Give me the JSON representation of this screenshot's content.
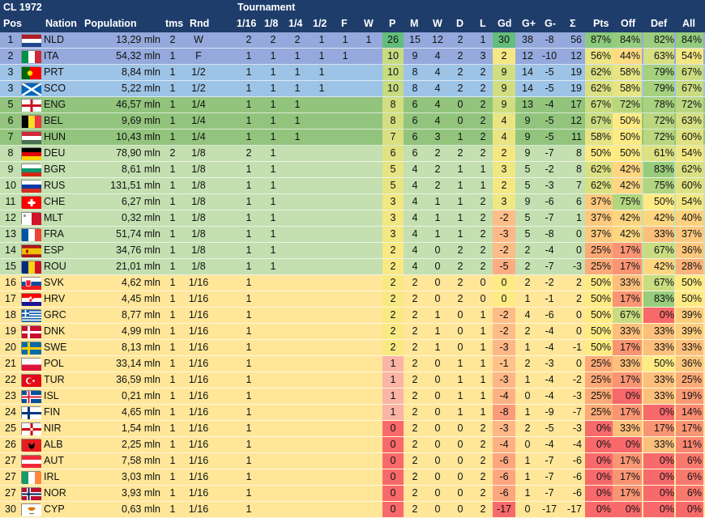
{
  "title": "CL 1972",
  "tournament_label": "Tournament",
  "headers": {
    "pos": "Pos",
    "nation": "Nation",
    "population": "Population",
    "tms": "tms",
    "rnd": "Rnd",
    "r16": "1/16",
    "r8": "1/8",
    "r4": "1/4",
    "r2": "1/2",
    "f": "F",
    "w": "W",
    "p": "P",
    "m": "M",
    "wins": "W",
    "d": "D",
    "l": "L",
    "gd": "Gd",
    "gplus": "G+",
    "gminus": "G-",
    "sigma": "Σ",
    "pts": "Pts",
    "off": "Off",
    "def": "Def",
    "all": "All"
  },
  "colors": {
    "header": "#1f3d6b",
    "band_winner": "#95a9dc",
    "band_semi": "#9dc3e6",
    "band_quarter": "#92c47d",
    "band_eighth": "#c4dfb0",
    "band_sixteenth": "#ffe699"
  },
  "rows": [
    {
      "pos": "1",
      "flag": "NLD",
      "nation": "NLD",
      "population": "13,29 mln",
      "tms": "2",
      "rnd": "W",
      "r16": "2",
      "r8": "2",
      "r4": "2",
      "r2": "1",
      "f": "1",
      "w": "1",
      "p": "26",
      "m": "15",
      "w2": "12",
      "d": "2",
      "l": "1",
      "gd": "30",
      "gp": "38",
      "gm": "-8",
      "sig": "56",
      "pts": "87%",
      "off": "84%",
      "def": "82%",
      "all": "84%",
      "band": "winner"
    },
    {
      "pos": "2",
      "flag": "ITA",
      "nation": "ITA",
      "population": "54,32 mln",
      "tms": "1",
      "rnd": "F",
      "r16": "1",
      "r8": "1",
      "r4": "1",
      "r2": "1",
      "f": "1",
      "w": "",
      "p": "10",
      "m": "9",
      "w2": "4",
      "d": "2",
      "l": "3",
      "gd": "2",
      "gp": "12",
      "gm": "-10",
      "sig": "12",
      "pts": "56%",
      "off": "44%",
      "def": "63%",
      "all": "54%",
      "band": "winner"
    },
    {
      "pos": "3",
      "flag": "PRT",
      "nation": "PRT",
      "population": "8,84 mln",
      "tms": "1",
      "rnd": "1/2",
      "r16": "1",
      "r8": "1",
      "r4": "1",
      "r2": "1",
      "f": "",
      "w": "",
      "p": "10",
      "m": "8",
      "w2": "4",
      "d": "2",
      "l": "2",
      "gd": "9",
      "gp": "14",
      "gm": "-5",
      "sig": "19",
      "pts": "62%",
      "off": "58%",
      "def": "79%",
      "all": "67%",
      "band": "semi"
    },
    {
      "pos": "3",
      "flag": "SCO",
      "nation": "SCO",
      "population": "5,22 mln",
      "tms": "1",
      "rnd": "1/2",
      "r16": "1",
      "r8": "1",
      "r4": "1",
      "r2": "1",
      "f": "",
      "w": "",
      "p": "10",
      "m": "8",
      "w2": "4",
      "d": "2",
      "l": "2",
      "gd": "9",
      "gp": "14",
      "gm": "-5",
      "sig": "19",
      "pts": "62%",
      "off": "58%",
      "def": "79%",
      "all": "67%",
      "band": "semi"
    },
    {
      "pos": "5",
      "flag": "ENG",
      "nation": "ENG",
      "population": "46,57 mln",
      "tms": "1",
      "rnd": "1/4",
      "r16": "1",
      "r8": "1",
      "r4": "1",
      "r2": "",
      "f": "",
      "w": "",
      "p": "8",
      "m": "6",
      "w2": "4",
      "d": "0",
      "l": "2",
      "gd": "9",
      "gp": "13",
      "gm": "-4",
      "sig": "17",
      "pts": "67%",
      "off": "72%",
      "def": "78%",
      "all": "72%",
      "band": "quarter"
    },
    {
      "pos": "6",
      "flag": "BEL",
      "nation": "BEL",
      "population": "9,69 mln",
      "tms": "1",
      "rnd": "1/4",
      "r16": "1",
      "r8": "1",
      "r4": "1",
      "r2": "",
      "f": "",
      "w": "",
      "p": "8",
      "m": "6",
      "w2": "4",
      "d": "0",
      "l": "2",
      "gd": "4",
      "gp": "9",
      "gm": "-5",
      "sig": "12",
      "pts": "67%",
      "off": "50%",
      "def": "72%",
      "all": "63%",
      "band": "quarter"
    },
    {
      "pos": "7",
      "flag": "HUN",
      "nation": "HUN",
      "population": "10,43 mln",
      "tms": "1",
      "rnd": "1/4",
      "r16": "1",
      "r8": "1",
      "r4": "1",
      "r2": "",
      "f": "",
      "w": "",
      "p": "7",
      "m": "6",
      "w2": "3",
      "d": "1",
      "l": "2",
      "gd": "4",
      "gp": "9",
      "gm": "-5",
      "sig": "11",
      "pts": "58%",
      "off": "50%",
      "def": "72%",
      "all": "60%",
      "band": "quarter"
    },
    {
      "pos": "8",
      "flag": "DEU",
      "nation": "DEU",
      "population": "78,90 mln",
      "tms": "2",
      "rnd": "1/8",
      "r16": "2",
      "r8": "1",
      "r4": "",
      "r2": "",
      "f": "",
      "w": "",
      "p": "6",
      "m": "6",
      "w2": "2",
      "d": "2",
      "l": "2",
      "gd": "2",
      "gp": "9",
      "gm": "-7",
      "sig": "8",
      "pts": "50%",
      "off": "50%",
      "def": "61%",
      "all": "54%",
      "band": "eighth"
    },
    {
      "pos": "9",
      "flag": "BGR",
      "nation": "BGR",
      "population": "8,61 mln",
      "tms": "1",
      "rnd": "1/8",
      "r16": "1",
      "r8": "1",
      "r4": "",
      "r2": "",
      "f": "",
      "w": "",
      "p": "5",
      "m": "4",
      "w2": "2",
      "d": "1",
      "l": "1",
      "gd": "3",
      "gp": "5",
      "gm": "-2",
      "sig": "8",
      "pts": "62%",
      "off": "42%",
      "def": "83%",
      "all": "62%",
      "band": "eighth"
    },
    {
      "pos": "10",
      "flag": "RUS",
      "nation": "RUS",
      "population": "131,51 mln",
      "tms": "1",
      "rnd": "1/8",
      "r16": "1",
      "r8": "1",
      "r4": "",
      "r2": "",
      "f": "",
      "w": "",
      "p": "5",
      "m": "4",
      "w2": "2",
      "d": "1",
      "l": "1",
      "gd": "2",
      "gp": "5",
      "gm": "-3",
      "sig": "7",
      "pts": "62%",
      "off": "42%",
      "def": "75%",
      "all": "60%",
      "band": "eighth"
    },
    {
      "pos": "11",
      "flag": "CHE",
      "nation": "CHE",
      "population": "6,27 mln",
      "tms": "1",
      "rnd": "1/8",
      "r16": "1",
      "r8": "1",
      "r4": "",
      "r2": "",
      "f": "",
      "w": "",
      "p": "3",
      "m": "4",
      "w2": "1",
      "d": "1",
      "l": "2",
      "gd": "3",
      "gp": "9",
      "gm": "-6",
      "sig": "6",
      "pts": "37%",
      "off": "75%",
      "def": "50%",
      "all": "54%",
      "band": "eighth"
    },
    {
      "pos": "12",
      "flag": "MLT",
      "nation": "MLT",
      "population": "0,32 mln",
      "tms": "1",
      "rnd": "1/8",
      "r16": "1",
      "r8": "1",
      "r4": "",
      "r2": "",
      "f": "",
      "w": "",
      "p": "3",
      "m": "4",
      "w2": "1",
      "d": "1",
      "l": "2",
      "gd": "-2",
      "gp": "5",
      "gm": "-7",
      "sig": "1",
      "pts": "37%",
      "off": "42%",
      "def": "42%",
      "all": "40%",
      "band": "eighth"
    },
    {
      "pos": "13",
      "flag": "FRA",
      "nation": "FRA",
      "population": "51,74 mln",
      "tms": "1",
      "rnd": "1/8",
      "r16": "1",
      "r8": "1",
      "r4": "",
      "r2": "",
      "f": "",
      "w": "",
      "p": "3",
      "m": "4",
      "w2": "1",
      "d": "1",
      "l": "2",
      "gd": "-3",
      "gp": "5",
      "gm": "-8",
      "sig": "0",
      "pts": "37%",
      "off": "42%",
      "def": "33%",
      "all": "37%",
      "band": "eighth"
    },
    {
      "pos": "14",
      "flag": "ESP",
      "nation": "ESP",
      "population": "34,76 mln",
      "tms": "1",
      "rnd": "1/8",
      "r16": "1",
      "r8": "1",
      "r4": "",
      "r2": "",
      "f": "",
      "w": "",
      "p": "2",
      "m": "4",
      "w2": "0",
      "d": "2",
      "l": "2",
      "gd": "-2",
      "gp": "2",
      "gm": "-4",
      "sig": "0",
      "pts": "25%",
      "off": "17%",
      "def": "67%",
      "all": "36%",
      "band": "eighth"
    },
    {
      "pos": "15",
      "flag": "ROU",
      "nation": "ROU",
      "population": "21,01 mln",
      "tms": "1",
      "rnd": "1/8",
      "r16": "1",
      "r8": "1",
      "r4": "",
      "r2": "",
      "f": "",
      "w": "",
      "p": "2",
      "m": "4",
      "w2": "0",
      "d": "2",
      "l": "2",
      "gd": "-5",
      "gp": "2",
      "gm": "-7",
      "sig": "-3",
      "pts": "25%",
      "off": "17%",
      "def": "42%",
      "all": "28%",
      "band": "eighth"
    },
    {
      "pos": "16",
      "flag": "SVK",
      "nation": "SVK",
      "population": "4,62 mln",
      "tms": "1",
      "rnd": "1/16",
      "r16": "1",
      "r8": "",
      "r4": "",
      "r2": "",
      "f": "",
      "w": "",
      "p": "2",
      "m": "2",
      "w2": "0",
      "d": "2",
      "l": "0",
      "gd": "0",
      "gp": "2",
      "gm": "-2",
      "sig": "2",
      "pts": "50%",
      "off": "33%",
      "def": "67%",
      "all": "50%",
      "band": "sixteenth"
    },
    {
      "pos": "17",
      "flag": "HRV",
      "nation": "HRV",
      "population": "4,45 mln",
      "tms": "1",
      "rnd": "1/16",
      "r16": "1",
      "r8": "",
      "r4": "",
      "r2": "",
      "f": "",
      "w": "",
      "p": "2",
      "m": "2",
      "w2": "0",
      "d": "2",
      "l": "0",
      "gd": "0",
      "gp": "1",
      "gm": "-1",
      "sig": "2",
      "pts": "50%",
      "off": "17%",
      "def": "83%",
      "all": "50%",
      "band": "sixteenth"
    },
    {
      "pos": "18",
      "flag": "GRC",
      "nation": "GRC",
      "population": "8,77 mln",
      "tms": "1",
      "rnd": "1/16",
      "r16": "1",
      "r8": "",
      "r4": "",
      "r2": "",
      "f": "",
      "w": "",
      "p": "2",
      "m": "2",
      "w2": "1",
      "d": "0",
      "l": "1",
      "gd": "-2",
      "gp": "4",
      "gm": "-6",
      "sig": "0",
      "pts": "50%",
      "off": "67%",
      "def": "0%",
      "all": "39%",
      "band": "sixteenth"
    },
    {
      "pos": "19",
      "flag": "DNK",
      "nation": "DNK",
      "population": "4,99 mln",
      "tms": "1",
      "rnd": "1/16",
      "r16": "1",
      "r8": "",
      "r4": "",
      "r2": "",
      "f": "",
      "w": "",
      "p": "2",
      "m": "2",
      "w2": "1",
      "d": "0",
      "l": "1",
      "gd": "-2",
      "gp": "2",
      "gm": "-4",
      "sig": "0",
      "pts": "50%",
      "off": "33%",
      "def": "33%",
      "all": "39%",
      "band": "sixteenth"
    },
    {
      "pos": "20",
      "flag": "SWE",
      "nation": "SWE",
      "population": "8,13 mln",
      "tms": "1",
      "rnd": "1/16",
      "r16": "1",
      "r8": "",
      "r4": "",
      "r2": "",
      "f": "",
      "w": "",
      "p": "2",
      "m": "2",
      "w2": "1",
      "d": "0",
      "l": "1",
      "gd": "-3",
      "gp": "1",
      "gm": "-4",
      "sig": "-1",
      "pts": "50%",
      "off": "17%",
      "def": "33%",
      "all": "33%",
      "band": "sixteenth"
    },
    {
      "pos": "21",
      "flag": "POL",
      "nation": "POL",
      "population": "33,14 mln",
      "tms": "1",
      "rnd": "1/16",
      "r16": "1",
      "r8": "",
      "r4": "",
      "r2": "",
      "f": "",
      "w": "",
      "p": "1",
      "m": "2",
      "w2": "0",
      "d": "1",
      "l": "1",
      "gd": "-1",
      "gp": "2",
      "gm": "-3",
      "sig": "0",
      "pts": "25%",
      "off": "33%",
      "def": "50%",
      "all": "36%",
      "band": "sixteenth"
    },
    {
      "pos": "22",
      "flag": "TUR",
      "nation": "TUR",
      "population": "36,59 mln",
      "tms": "1",
      "rnd": "1/16",
      "r16": "1",
      "r8": "",
      "r4": "",
      "r2": "",
      "f": "",
      "w": "",
      "p": "1",
      "m": "2",
      "w2": "0",
      "d": "1",
      "l": "1",
      "gd": "-3",
      "gp": "1",
      "gm": "-4",
      "sig": "-2",
      "pts": "25%",
      "off": "17%",
      "def": "33%",
      "all": "25%",
      "band": "sixteenth"
    },
    {
      "pos": "23",
      "flag": "ISL",
      "nation": "ISL",
      "population": "0,21 mln",
      "tms": "1",
      "rnd": "1/16",
      "r16": "1",
      "r8": "",
      "r4": "",
      "r2": "",
      "f": "",
      "w": "",
      "p": "1",
      "m": "2",
      "w2": "0",
      "d": "1",
      "l": "1",
      "gd": "-4",
      "gp": "0",
      "gm": "-4",
      "sig": "-3",
      "pts": "25%",
      "off": "0%",
      "def": "33%",
      "all": "19%",
      "band": "sixteenth"
    },
    {
      "pos": "24",
      "flag": "FIN",
      "nation": "FIN",
      "population": "4,65 mln",
      "tms": "1",
      "rnd": "1/16",
      "r16": "1",
      "r8": "",
      "r4": "",
      "r2": "",
      "f": "",
      "w": "",
      "p": "1",
      "m": "2",
      "w2": "0",
      "d": "1",
      "l": "1",
      "gd": "-8",
      "gp": "1",
      "gm": "-9",
      "sig": "-7",
      "pts": "25%",
      "off": "17%",
      "def": "0%",
      "all": "14%",
      "band": "sixteenth"
    },
    {
      "pos": "25",
      "flag": "NIR",
      "nation": "NIR",
      "population": "1,54 mln",
      "tms": "1",
      "rnd": "1/16",
      "r16": "1",
      "r8": "",
      "r4": "",
      "r2": "",
      "f": "",
      "w": "",
      "p": "0",
      "m": "2",
      "w2": "0",
      "d": "0",
      "l": "2",
      "gd": "-3",
      "gp": "2",
      "gm": "-5",
      "sig": "-3",
      "pts": "0%",
      "off": "33%",
      "def": "17%",
      "all": "17%",
      "band": "sixteenth"
    },
    {
      "pos": "26",
      "flag": "ALB",
      "nation": "ALB",
      "population": "2,25 mln",
      "tms": "1",
      "rnd": "1/16",
      "r16": "1",
      "r8": "",
      "r4": "",
      "r2": "",
      "f": "",
      "w": "",
      "p": "0",
      "m": "2",
      "w2": "0",
      "d": "0",
      "l": "2",
      "gd": "-4",
      "gp": "0",
      "gm": "-4",
      "sig": "-4",
      "pts": "0%",
      "off": "0%",
      "def": "33%",
      "all": "11%",
      "band": "sixteenth"
    },
    {
      "pos": "27",
      "flag": "AUT",
      "nation": "AUT",
      "population": "7,58 mln",
      "tms": "1",
      "rnd": "1/16",
      "r16": "1",
      "r8": "",
      "r4": "",
      "r2": "",
      "f": "",
      "w": "",
      "p": "0",
      "m": "2",
      "w2": "0",
      "d": "0",
      "l": "2",
      "gd": "-6",
      "gp": "1",
      "gm": "-7",
      "sig": "-6",
      "pts": "0%",
      "off": "17%",
      "def": "0%",
      "all": "6%",
      "band": "sixteenth"
    },
    {
      "pos": "27",
      "flag": "IRL",
      "nation": "IRL",
      "population": "3,03 mln",
      "tms": "1",
      "rnd": "1/16",
      "r16": "1",
      "r8": "",
      "r4": "",
      "r2": "",
      "f": "",
      "w": "",
      "p": "0",
      "m": "2",
      "w2": "0",
      "d": "0",
      "l": "2",
      "gd": "-6",
      "gp": "1",
      "gm": "-7",
      "sig": "-6",
      "pts": "0%",
      "off": "17%",
      "def": "0%",
      "all": "6%",
      "band": "sixteenth"
    },
    {
      "pos": "27",
      "flag": "NOR",
      "nation": "NOR",
      "population": "3,93 mln",
      "tms": "1",
      "rnd": "1/16",
      "r16": "1",
      "r8": "",
      "r4": "",
      "r2": "",
      "f": "",
      "w": "",
      "p": "0",
      "m": "2",
      "w2": "0",
      "d": "0",
      "l": "2",
      "gd": "-6",
      "gp": "1",
      "gm": "-7",
      "sig": "-6",
      "pts": "0%",
      "off": "17%",
      "def": "0%",
      "all": "6%",
      "band": "sixteenth"
    },
    {
      "pos": "30",
      "flag": "CYP",
      "nation": "CYP",
      "population": "0,63 mln",
      "tms": "1",
      "rnd": "1/16",
      "r16": "1",
      "r8": "",
      "r4": "",
      "r2": "",
      "f": "",
      "w": "",
      "p": "0",
      "m": "2",
      "w2": "0",
      "d": "0",
      "l": "2",
      "gd": "-17",
      "gp": "0",
      "gm": "-17",
      "sig": "-17",
      "pts": "0%",
      "off": "0%",
      "def": "0%",
      "all": "0%",
      "band": "sixteenth"
    }
  ]
}
